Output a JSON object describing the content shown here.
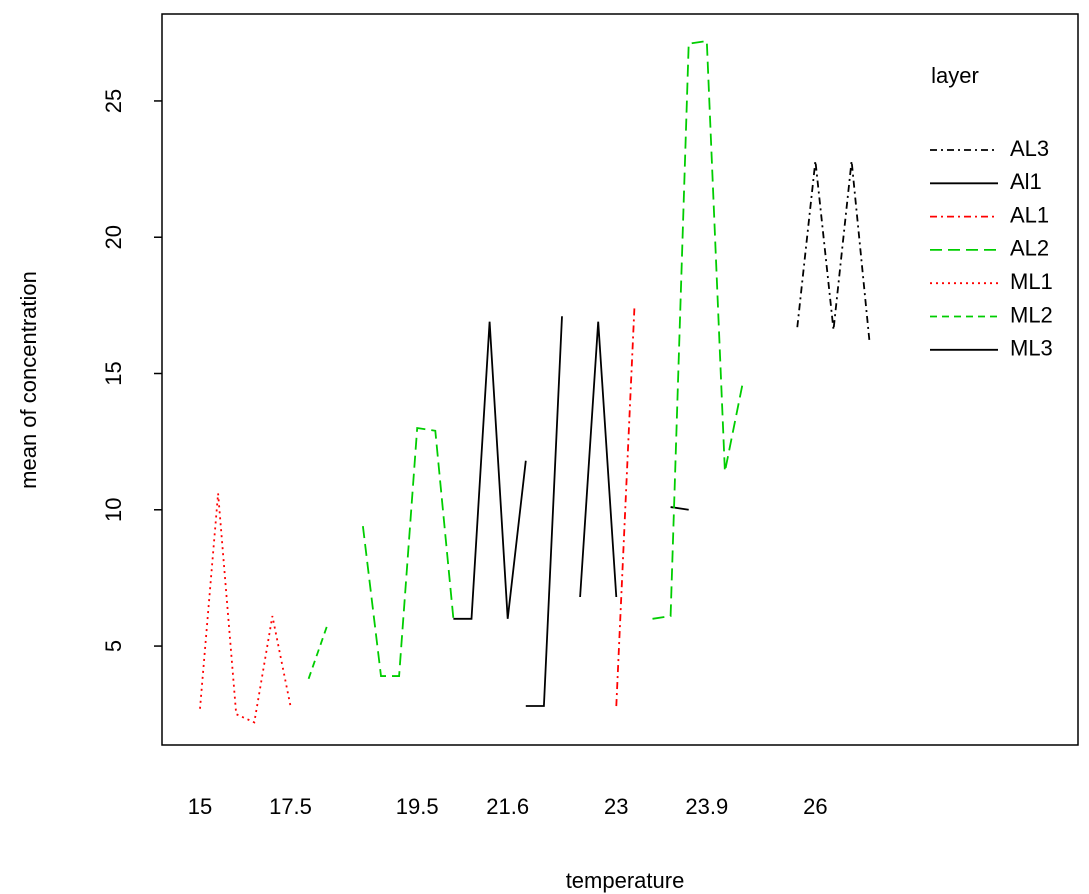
{
  "chart_data": {
    "type": "line",
    "x_label": "temperature",
    "y_label": "mean of  concentration",
    "legend_title": "layer",
    "legend_position": "right",
    "categories": [
      "15",
      null,
      null,
      null,
      null,
      "17.5",
      null,
      null,
      null,
      null,
      null,
      null,
      "19.5",
      null,
      null,
      null,
      null,
      "21.6",
      null,
      null,
      null,
      null,
      null,
      "23",
      null,
      null,
      null,
      null,
      "23.9",
      null,
      null,
      null,
      null,
      null,
      "26",
      null,
      null,
      null
    ],
    "ylim": [
      1.37,
      28.19
    ],
    "yticks": [
      5,
      10,
      15,
      20,
      25
    ],
    "series": [
      {
        "name": "AL3",
        "color": "#000000",
        "linestyle": "dashdot",
        "values": [
          null,
          null,
          null,
          null,
          null,
          null,
          null,
          null,
          null,
          null,
          null,
          null,
          null,
          null,
          null,
          null,
          null,
          null,
          null,
          null,
          null,
          null,
          null,
          null,
          null,
          null,
          null,
          null,
          null,
          null,
          null,
          null,
          null,
          16.7,
          22.8,
          16.6,
          22.8,
          16.1
        ]
      },
      {
        "name": "Al1",
        "color": "#000000",
        "linestyle": "solid",
        "values": [
          null,
          null,
          null,
          null,
          null,
          null,
          null,
          null,
          null,
          null,
          null,
          null,
          null,
          null,
          6,
          6,
          16.9,
          6,
          11.8,
          null,
          null,
          6.8,
          16.9,
          6.8,
          null,
          null,
          10.1,
          10,
          null,
          null,
          null,
          null,
          null,
          null,
          null,
          null,
          null,
          null
        ]
      },
      {
        "name": "AL1",
        "color": "#ff0000",
        "linestyle": "dashdot",
        "values": [
          null,
          null,
          null,
          null,
          null,
          null,
          null,
          null,
          null,
          null,
          null,
          null,
          null,
          null,
          null,
          null,
          null,
          null,
          null,
          null,
          null,
          null,
          null,
          2.8,
          17.4,
          null,
          null,
          null,
          null,
          null,
          null,
          null,
          null,
          null,
          null,
          null,
          null,
          null
        ]
      },
      {
        "name": "AL2",
        "color": "#00cd00",
        "linestyle": "longdash",
        "values": [
          null,
          null,
          null,
          null,
          null,
          null,
          null,
          null,
          null,
          9.4,
          3.9,
          3.9,
          13,
          12.9,
          6,
          null,
          null,
          null,
          null,
          null,
          null,
          null,
          null,
          null,
          null,
          6,
          6.1,
          27.1,
          27.2,
          11.4,
          14.7,
          null,
          null,
          null,
          null,
          null,
          null,
          null
        ]
      },
      {
        "name": "ML1",
        "color": "#ff0000",
        "linestyle": "dotted",
        "values": [
          2.7,
          10.6,
          2.5,
          2.2,
          6.1,
          2.8,
          null,
          null,
          null,
          null,
          null,
          null,
          null,
          null,
          null,
          null,
          null,
          null,
          null,
          null,
          null,
          null,
          null,
          null,
          null,
          null,
          null,
          null,
          null,
          null,
          null,
          null,
          null,
          null,
          null,
          null,
          null,
          null
        ]
      },
      {
        "name": "ML2",
        "color": "#00cd00",
        "linestyle": "dashed",
        "values": [
          null,
          null,
          null,
          null,
          null,
          null,
          3.8,
          5.7,
          null,
          null,
          null,
          null,
          null,
          null,
          null,
          null,
          null,
          null,
          null,
          null,
          null,
          null,
          null,
          null,
          null,
          null,
          null,
          null,
          null,
          null,
          null,
          null,
          null,
          null,
          null,
          null,
          null,
          null
        ]
      },
      {
        "name": "ML3",
        "color": "#000000",
        "linestyle": "solid",
        "values": [
          null,
          null,
          null,
          null,
          null,
          null,
          null,
          null,
          null,
          null,
          null,
          null,
          null,
          null,
          null,
          null,
          null,
          null,
          2.8,
          2.8,
          17.1,
          null,
          null,
          null,
          null,
          null,
          null,
          null,
          null,
          null,
          null,
          null,
          null,
          null,
          null,
          null,
          null,
          null
        ]
      }
    ]
  }
}
